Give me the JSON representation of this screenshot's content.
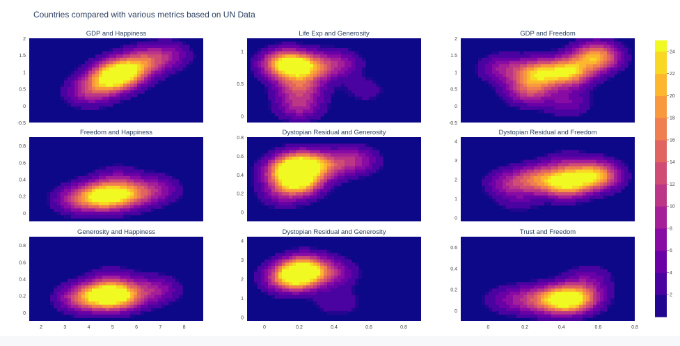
{
  "page": {
    "title": "Countries compared with various metrics based on UN Data"
  },
  "colors": {
    "background": "#0d0887",
    "contour_line": "#3b2d6e",
    "title_text": "#2a3f5f",
    "tick_text": "#444444"
  },
  "colorscale": {
    "name": "Plasma",
    "stops": [
      "#0d0887",
      "#46039f",
      "#7201a8",
      "#9c179e",
      "#bd3786",
      "#d8576b",
      "#ed7953",
      "#fb9f3a",
      "#fdca26",
      "#f0f921"
    ],
    "range": [
      0,
      25
    ],
    "ticks": [
      2,
      4,
      6,
      8,
      10,
      12,
      14,
      16,
      18,
      20,
      22,
      24
    ]
  },
  "chart_data": [
    {
      "type": "heatmap",
      "title": "GDP and Happiness",
      "xlabel": "",
      "ylabel": "",
      "xlim": [
        1.5,
        8.8
      ],
      "ylim": [
        -0.5,
        2
      ],
      "xticks": [],
      "yticks": [
        -0.5,
        0,
        0.5,
        1,
        1.5,
        2
      ],
      "peaks": [
        {
          "x": 5.4,
          "y": 1.0,
          "h": 24
        },
        {
          "x": 4.8,
          "y": 0.75,
          "h": 18
        },
        {
          "x": 6.3,
          "y": 1.3,
          "h": 12
        },
        {
          "x": 4.0,
          "y": 0.4,
          "h": 9
        },
        {
          "x": 7.3,
          "y": 1.5,
          "h": 7
        }
      ]
    },
    {
      "type": "heatmap",
      "title": "Life Exp and Generosity",
      "xlabel": "",
      "ylabel": "",
      "xlim": [
        -0.1,
        0.9
      ],
      "ylim": [
        -0.1,
        1.2
      ],
      "xticks": [],
      "yticks": [
        0,
        0.5,
        1
      ],
      "peaks": [
        {
          "x": 0.12,
          "y": 0.8,
          "h": 24
        },
        {
          "x": 0.24,
          "y": 0.75,
          "h": 17
        },
        {
          "x": 0.2,
          "y": 0.45,
          "h": 12
        },
        {
          "x": 0.2,
          "y": 0.15,
          "h": 9
        },
        {
          "x": 0.42,
          "y": 0.8,
          "h": 8
        },
        {
          "x": 0.58,
          "y": 0.4,
          "h": 3
        }
      ]
    },
    {
      "type": "heatmap",
      "title": "GDP and Freedom",
      "xlabel": "",
      "ylabel": "",
      "xlim": [
        -0.1,
        0.8
      ],
      "ylim": [
        -0.5,
        2
      ],
      "xticks": [],
      "yticks": [
        -0.5,
        0,
        0.5,
        1,
        1.5,
        2
      ],
      "peaks": [
        {
          "x": 0.46,
          "y": 1.0,
          "h": 22
        },
        {
          "x": 0.6,
          "y": 1.45,
          "h": 21
        },
        {
          "x": 0.3,
          "y": 0.95,
          "h": 20
        },
        {
          "x": 0.25,
          "y": 0.45,
          "h": 12
        },
        {
          "x": 0.12,
          "y": 1.1,
          "h": 8
        },
        {
          "x": 0.45,
          "y": 0.1,
          "h": 6
        }
      ]
    },
    {
      "type": "heatmap",
      "title": "Freedom and Happiness",
      "xlabel": "",
      "ylabel": "",
      "xlim": [
        1.5,
        8.8
      ],
      "ylim": [
        -0.1,
        0.9
      ],
      "xticks": [],
      "yticks": [
        0,
        0.2,
        0.4,
        0.6,
        0.8
      ],
      "peaks": [
        {
          "x": 4.6,
          "y": 0.2,
          "h": 24
        },
        {
          "x": 5.6,
          "y": 0.22,
          "h": 16
        },
        {
          "x": 3.5,
          "y": 0.16,
          "h": 10
        },
        {
          "x": 6.8,
          "y": 0.28,
          "h": 8
        },
        {
          "x": 5.2,
          "y": 0.42,
          "h": 4
        }
      ]
    },
    {
      "type": "heatmap",
      "title": "Dystopian Residual and Generosity",
      "xlabel": "",
      "ylabel": "",
      "xlim": [
        -0.1,
        0.9
      ],
      "ylim": [
        -0.1,
        0.8
      ],
      "xticks": [],
      "yticks": [
        0,
        0.2,
        0.4,
        0.6,
        0.8
      ],
      "peaks": [
        {
          "x": 0.2,
          "y": 0.5,
          "h": 24
        },
        {
          "x": 0.2,
          "y": 0.32,
          "h": 21
        },
        {
          "x": 0.12,
          "y": 0.42,
          "h": 14
        },
        {
          "x": 0.34,
          "y": 0.5,
          "h": 12
        },
        {
          "x": 0.52,
          "y": 0.55,
          "h": 9
        },
        {
          "x": 0.1,
          "y": 0.2,
          "h": 6
        }
      ]
    },
    {
      "type": "heatmap",
      "title": "Dystopian Residual and Freedom",
      "xlabel": "",
      "ylabel": "",
      "xlim": [
        -0.1,
        0.8
      ],
      "ylim": [
        -0.2,
        4.2
      ],
      "xticks": [],
      "yticks": [
        0,
        1,
        2,
        3,
        4
      ],
      "peaks": [
        {
          "x": 0.45,
          "y": 1.8,
          "h": 24
        },
        {
          "x": 0.6,
          "y": 2.2,
          "h": 21
        },
        {
          "x": 0.3,
          "y": 2.0,
          "h": 14
        },
        {
          "x": 0.15,
          "y": 1.8,
          "h": 8
        },
        {
          "x": 0.45,
          "y": 2.7,
          "h": 6
        },
        {
          "x": 0.2,
          "y": 0.9,
          "h": 3
        }
      ]
    },
    {
      "type": "heatmap",
      "title": "Generosity and Happiness",
      "xlabel": "",
      "ylabel": "",
      "xlim": [
        1.5,
        8.8
      ],
      "ylim": [
        -0.1,
        0.9
      ],
      "xticks": [
        2,
        3,
        4,
        5,
        6,
        7,
        8
      ],
      "yticks": [
        0,
        0.2,
        0.4,
        0.6,
        0.8
      ],
      "peaks": [
        {
          "x": 4.6,
          "y": 0.2,
          "h": 23
        },
        {
          "x": 5.4,
          "y": 0.2,
          "h": 18
        },
        {
          "x": 3.6,
          "y": 0.17,
          "h": 10
        },
        {
          "x": 6.8,
          "y": 0.27,
          "h": 8
        },
        {
          "x": 5.0,
          "y": 0.4,
          "h": 4
        }
      ]
    },
    {
      "type": "heatmap",
      "title": "Dystopian Residual and Generosity",
      "xlabel": "",
      "ylabel": "",
      "xlim": [
        -0.1,
        0.9
      ],
      "ylim": [
        -0.2,
        4.2
      ],
      "xticks": [
        0,
        0.2,
        0.4,
        0.6,
        0.8
      ],
      "yticks": [
        0,
        1,
        2,
        3,
        4
      ],
      "peaks": [
        {
          "x": 0.2,
          "y": 2.2,
          "h": 24
        },
        {
          "x": 0.24,
          "y": 2.6,
          "h": 14
        },
        {
          "x": 0.12,
          "y": 2.0,
          "h": 10
        },
        {
          "x": 0.4,
          "y": 2.3,
          "h": 7
        },
        {
          "x": 0.42,
          "y": 0.8,
          "h": 4
        }
      ]
    },
    {
      "type": "heatmap",
      "title": "Trust and Freedom",
      "xlabel": "",
      "ylabel": "",
      "xlim": [
        -0.15,
        0.8
      ],
      "ylim": [
        -0.1,
        0.7
      ],
      "xticks": [
        0,
        0.2,
        0.4,
        0.6,
        0.8
      ],
      "yticks": [
        0,
        0.2,
        0.4,
        0.6
      ],
      "peaks": [
        {
          "x": 0.4,
          "y": 0.1,
          "h": 24
        },
        {
          "x": 0.5,
          "y": 0.12,
          "h": 14
        },
        {
          "x": 0.25,
          "y": 0.1,
          "h": 9
        },
        {
          "x": 0.1,
          "y": 0.1,
          "h": 5
        },
        {
          "x": 0.55,
          "y": 0.3,
          "h": 5
        }
      ]
    }
  ]
}
